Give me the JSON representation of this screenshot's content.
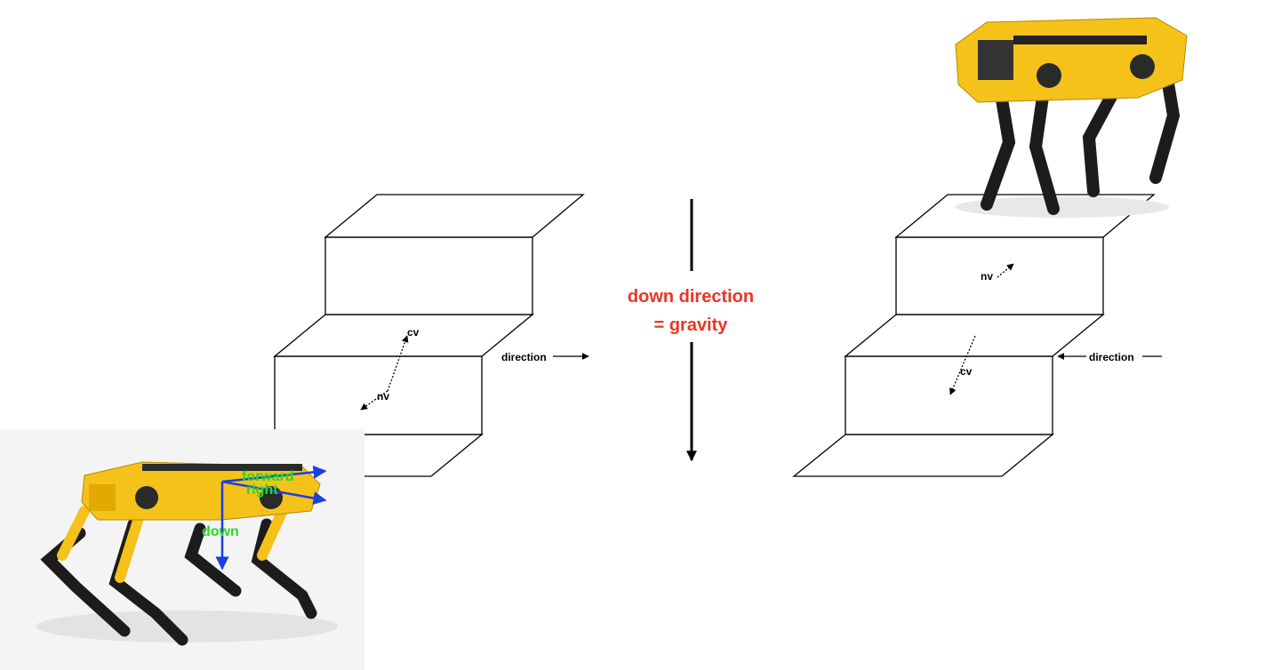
{
  "center": {
    "line1": "down direction",
    "line2": "= gravity"
  },
  "left_stairs": {
    "cv_label": "cv",
    "nv_label": "nv",
    "direction_label": "direction"
  },
  "right_stairs": {
    "cv_label": "cv",
    "nv_label": "nv",
    "direction_label": "direction"
  },
  "robot_axes": {
    "forward_label": "forward",
    "right_label": "right",
    "down_label": "down"
  },
  "colors": {
    "gravity_text": "#ee3322",
    "axis_arrow": "#1a3fe0",
    "axis_text": "#22dd22",
    "robot_body": "#f5c21a",
    "robot_legs": "#1c1c1c"
  },
  "icons": {
    "robot": "quadruped-robot-icon",
    "stairs": "stairs-icon",
    "arrow": "arrow-icon"
  }
}
